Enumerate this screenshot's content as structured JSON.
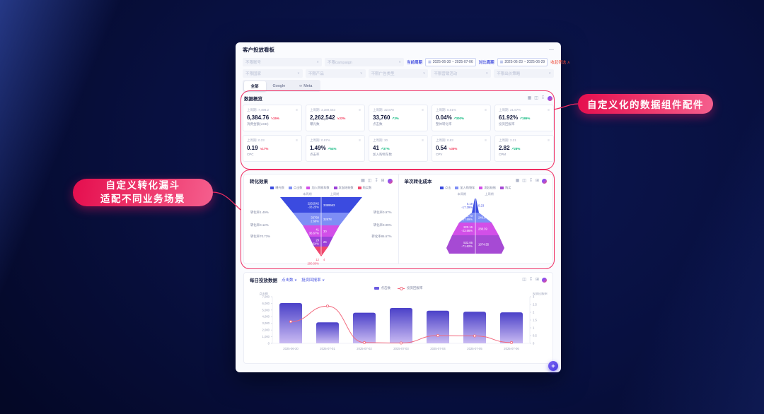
{
  "callouts": {
    "right": "自定义化的数据组件配件",
    "left_line1": "自定义转化漏斗",
    "left_line2": "适配不同业务场景"
  },
  "icons": {
    "chevron_down": "∨",
    "chevron_up": "∧",
    "calendar": "▦",
    "menu": "≡",
    "arrow_up": "↗",
    "arrow_down": "↘",
    "minimize": "—",
    "table": "▦",
    "columns": "◫",
    "download": "↧",
    "copy": "⊞",
    "plus": "+",
    "infinity": "∞"
  },
  "dashboard": {
    "title": "客户投放看板",
    "filters": {
      "row1_selects": [
        "不限账号",
        "不限campaign"
      ],
      "current_period": {
        "label": "当前周期",
        "start": "2025-06-30",
        "separator": "~",
        "end": "2025-07-06"
      },
      "compare_period": {
        "label": "对比周期",
        "start": "2025-06-23",
        "separator": "~",
        "end": "2025-06-29"
      },
      "collapse_label": "收起筛选",
      "row2_selects": [
        "不限国家",
        "不限产品",
        "不限广告类型",
        "不限营销活动",
        "不限出价策略"
      ]
    },
    "tabs": [
      {
        "label": "全部",
        "active": true
      },
      {
        "label": "Google",
        "active": false
      },
      {
        "label": "Meta",
        "active": false,
        "icon": "infinity"
      }
    ],
    "overview": {
      "title": "数据概览",
      "panel_icons": [
        "table",
        "columns",
        "download",
        "logo"
      ],
      "cards": [
        {
          "prev": "上周期: 7,498.2",
          "value": "6,384.76",
          "change": "15%",
          "dir": "down",
          "label": "消费金额(USD)"
        },
        {
          "prev": "上周期: 3,389,563",
          "value": "2,262,542",
          "change": "33%",
          "dir": "down",
          "label": "曝光数"
        },
        {
          "prev": "上周期: 32,878",
          "value": "33,760",
          "change": "3%",
          "dir": "up",
          "label": "点击数"
        },
        {
          "prev": "上周期: 0.01%",
          "value": "0.04%",
          "change": "300%",
          "dir": "up",
          "label": "整体转化率"
        },
        {
          "prev": "上周期: 21.67%",
          "value": "61.92%",
          "change": "186%",
          "dir": "up",
          "label": "投资回报率"
        },
        {
          "prev": "上周期: 0.23",
          "value": "0.19",
          "change": "17%",
          "dir": "down",
          "label": "CPC"
        },
        {
          "prev": "上周期: 0.97%",
          "value": "1.49%",
          "change": "54%",
          "dir": "up",
          "label": "点击率"
        },
        {
          "prev": "上周期: 30",
          "value": "41",
          "change": "37%",
          "dir": "up",
          "label": "加入购物车数"
        },
        {
          "prev": "上周期: 0.83",
          "value": "0.54",
          "change": "35%",
          "dir": "down",
          "label": "CPV"
        },
        {
          "prev": "上周期: 2.21",
          "value": "2.82",
          "change": "28%",
          "dir": "up",
          "label": "CPM"
        }
      ]
    }
  },
  "chart_data": [
    {
      "id": "conversion_funnel",
      "type": "funnel",
      "title": "转化效果",
      "panel_icons": [
        "table",
        "columns",
        "download",
        "copy",
        "logo"
      ],
      "legend": [
        "曝光数",
        "点击数",
        "加入购物车数",
        "发起结账数",
        "购买数"
      ],
      "legend_colors": [
        "#3b4be0",
        "#7e8ef5",
        "#d24fe8",
        "#9b41d8",
        "#f0476c"
      ],
      "columns": [
        "本周期",
        "上周期"
      ],
      "levels": [
        {
          "name": "曝光数",
          "current": "2262542",
          "change": "-33.25%",
          "previous": "3389563"
        },
        {
          "name": "点击数",
          "current": "33760",
          "change": "2.68%",
          "previous": "32878"
        },
        {
          "name": "加入购物车数",
          "current": "41",
          "change": "36.67%",
          "previous": "30"
        },
        {
          "name": "发起结账数",
          "current": "29",
          "change": "11.54%",
          "previous": "26"
        },
        {
          "name": "购买数",
          "current": "12",
          "change": "200.00%",
          "previous": "4"
        }
      ],
      "left_rates": [
        "转化率1.49%",
        "转化率0.12%",
        "转化率70.73%"
      ],
      "right_rates": [
        "转化率0.97%",
        "转化率0.09%",
        "转化率86.67%"
      ]
    },
    {
      "id": "cost_funnel",
      "type": "funnel-inverted",
      "title": "单次转化成本",
      "panel_icons": [
        "table",
        "columns",
        "download",
        "copy",
        "logo"
      ],
      "legend": [
        "点击",
        "加入购物车",
        "发起结账",
        "购买"
      ],
      "legend_colors": [
        "#3b4be0",
        "#7e8ef5",
        "#d24fe8",
        "#a64ad4"
      ],
      "columns": [
        "本周期",
        "上周期"
      ],
      "levels": [
        {
          "name": "点击",
          "current": "0.19",
          "change": "-17.39%",
          "previous": "0.23"
        },
        {
          "name": "加入购物车",
          "current": "155.73",
          "change": "-37.69%",
          "previous": "249.94"
        },
        {
          "name": "发起结账",
          "current": "220.16",
          "change": "-23.66%",
          "previous": "288.39"
        },
        {
          "name": "购买",
          "current": "532.06",
          "change": "-71.62%",
          "previous": "1874.55"
        }
      ]
    },
    {
      "id": "daily",
      "type": "bar+line",
      "title": "每日投放数据",
      "selectors": [
        "点击数",
        "投资回报率"
      ],
      "panel_icons": [
        "columns",
        "download",
        "copy",
        "logo"
      ],
      "legend": [
        {
          "label": "点击数",
          "kind": "bar",
          "color": "#6a5ae0"
        },
        {
          "label": "投资回报率",
          "kind": "line",
          "color": "#f2697d"
        }
      ],
      "ylabel_left": "点击数",
      "ylabel_right": "投资回报率",
      "categories": [
        "2025-06-30",
        "2025-07-01",
        "2025-07-02",
        "2025-07-03",
        "2025-07-04",
        "2025-07-05",
        "2025-07-06"
      ],
      "bars": [
        6050,
        3150,
        4600,
        5300,
        4900,
        4750,
        4650
      ],
      "line": [
        1.4,
        2.4,
        0.05,
        0.02,
        0.5,
        0.48,
        0.05
      ],
      "ylim_left": [
        0,
        7000
      ],
      "yticks_left": [
        0,
        1000,
        2000,
        3000,
        4000,
        5000,
        6000,
        7000
      ],
      "ylim_right": [
        0,
        3
      ],
      "yticks_right": [
        0,
        0.5,
        1,
        1.5,
        2,
        2.5,
        3
      ],
      "bar_gradient": [
        "#4b41c8",
        "#c9baf2"
      ],
      "line_color": "#f2697d"
    }
  ]
}
